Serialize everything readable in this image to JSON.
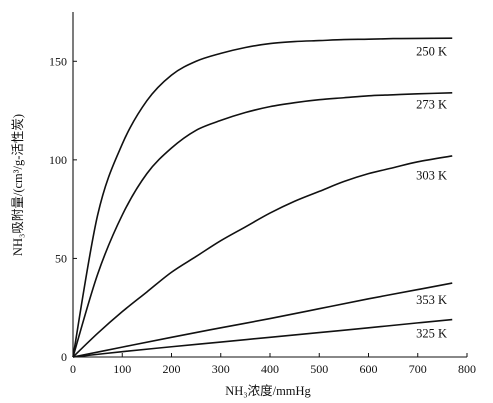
{
  "chart_data": {
    "type": "line",
    "xlabel": "NH₃浓度/mmHg",
    "ylabel": "NH₃吸附量/(cm³/g-活性炭)",
    "xlim": [
      0,
      800
    ],
    "ylim": [
      0,
      175
    ],
    "xticks": [
      0,
      100,
      200,
      300,
      400,
      500,
      600,
      700,
      800
    ],
    "yticks": [
      0,
      50,
      100,
      150
    ],
    "grid": false,
    "series": [
      {
        "name": "250 K",
        "x": [
          0,
          50,
          100,
          150,
          200,
          250,
          300,
          350,
          400,
          450,
          500,
          550,
          600,
          650,
          700,
          770
        ],
        "y": [
          0,
          72,
          108,
          130,
          143,
          150,
          154,
          157,
          159,
          160,
          160.5,
          161,
          161.2,
          161.5,
          161.6,
          161.7
        ]
      },
      {
        "name": "273 K",
        "x": [
          0,
          50,
          100,
          150,
          200,
          250,
          300,
          350,
          400,
          450,
          500,
          550,
          600,
          650,
          700,
          770
        ],
        "y": [
          0,
          42,
          72,
          93,
          106,
          115,
          120,
          124,
          127,
          129,
          130.5,
          131.5,
          132.5,
          133,
          133.5,
          134
        ]
      },
      {
        "name": "303 K",
        "x": [
          0,
          50,
          100,
          150,
          200,
          250,
          300,
          350,
          400,
          450,
          500,
          550,
          600,
          650,
          700,
          770
        ],
        "y": [
          0,
          12,
          23,
          33,
          43,
          51,
          59,
          66,
          73,
          79,
          84,
          89,
          93,
          96,
          99,
          102
        ]
      },
      {
        "name": "353 K",
        "x": [
          0,
          100,
          200,
          300,
          400,
          500,
          600,
          700,
          770
        ],
        "y": [
          0,
          5,
          10,
          14.8,
          19.5,
          24.5,
          29.5,
          34.2,
          37.5
        ]
      },
      {
        "name": "325 K",
        "x": [
          0,
          100,
          200,
          300,
          400,
          500,
          600,
          700,
          770
        ],
        "y": [
          0,
          2.7,
          5.2,
          7.6,
          10,
          12.4,
          14.8,
          17.3,
          19
        ]
      }
    ],
    "label_positions_data": [
      {
        "series": "250 K",
        "x": 728,
        "y": 155
      },
      {
        "series": "273 K",
        "x": 728,
        "y": 128
      },
      {
        "series": "303 K",
        "x": 728,
        "y": 92
      },
      {
        "series": "353 K",
        "x": 728,
        "y": 29
      },
      {
        "series": "325 K",
        "x": 728,
        "y": 12
      }
    ]
  }
}
